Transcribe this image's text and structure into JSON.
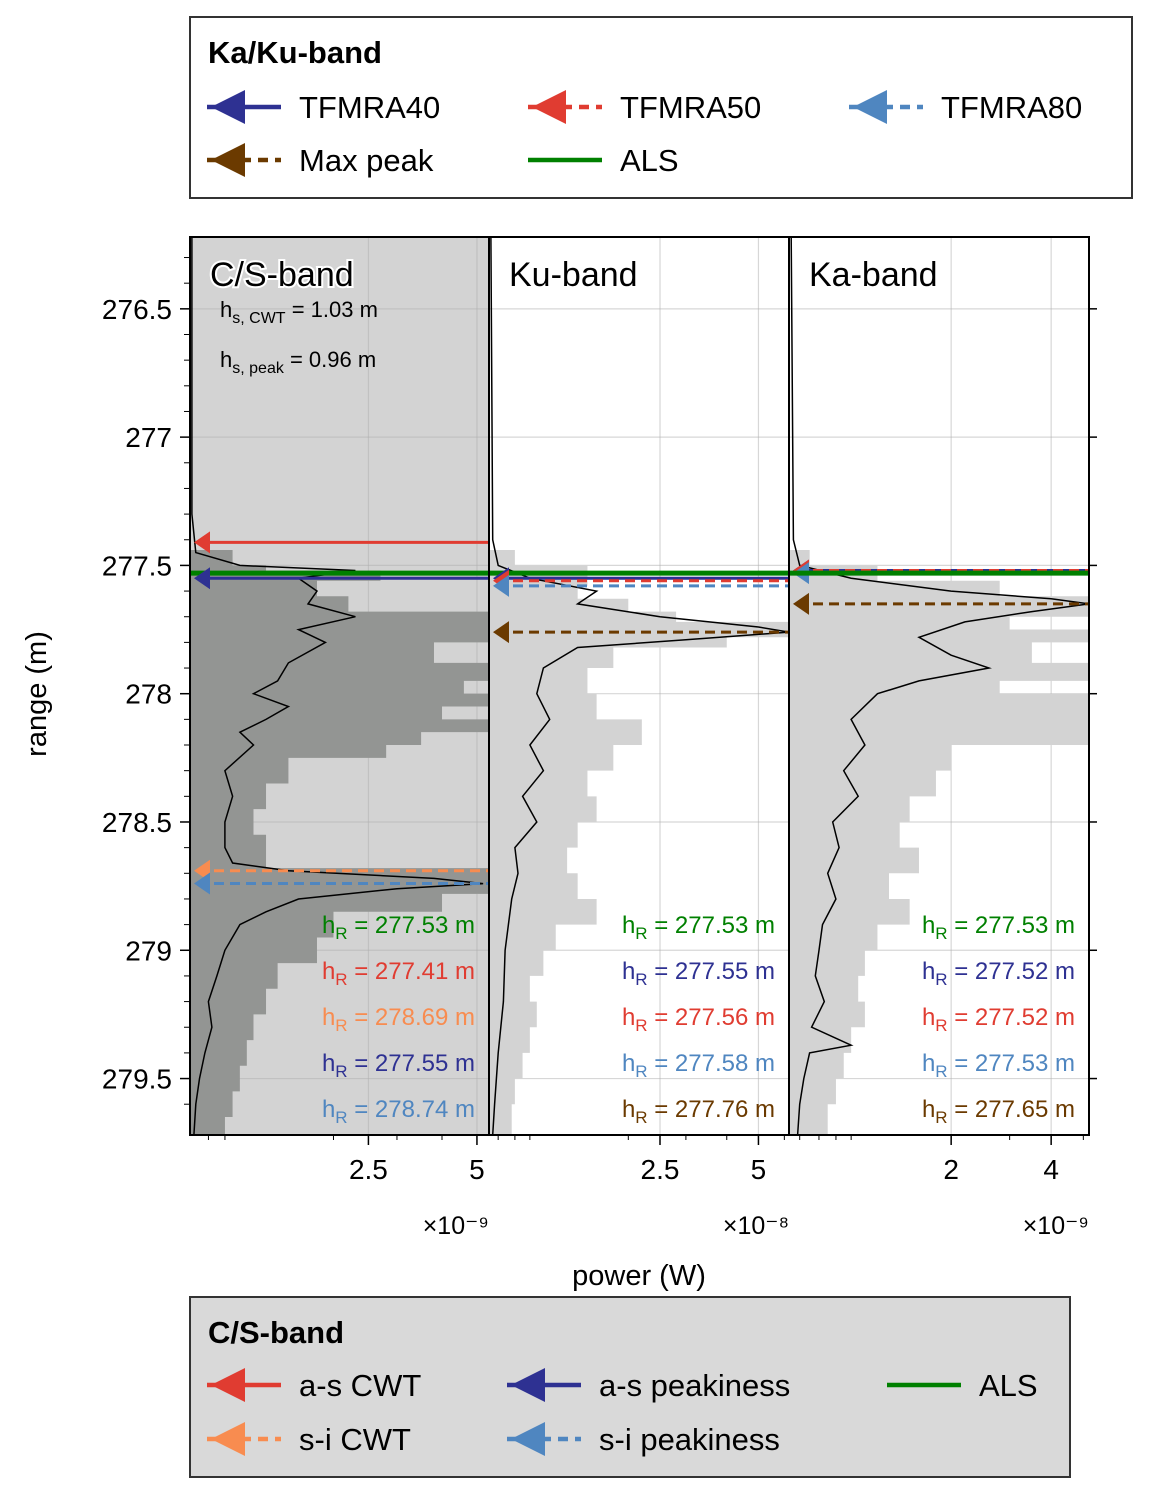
{
  "legend_top": {
    "title": "Ka/Ku-band",
    "items": [
      {
        "label": "TFMRA40",
        "color": "#2e3192",
        "style": "solid",
        "marker": true
      },
      {
        "label": "TFMRA50",
        "color": "#e03c31",
        "style": "dashed",
        "marker": true
      },
      {
        "label": "TFMRA80",
        "color": "#4f86c0",
        "style": "dashed",
        "marker": true
      },
      {
        "label": "Max peak",
        "color": "#6b3a00",
        "style": "dashed",
        "marker": true
      },
      {
        "label": "ALS",
        "color": "#008000",
        "style": "solid",
        "marker": false
      }
    ]
  },
  "legend_bottom": {
    "title": "C/S-band",
    "items": [
      {
        "label": "a-s CWT",
        "color": "#e03c31",
        "style": "solid",
        "marker": true
      },
      {
        "label": "a-s peakiness",
        "color": "#2e3192",
        "style": "solid",
        "marker": true
      },
      {
        "label": "ALS",
        "color": "#008000",
        "style": "solid",
        "marker": false
      },
      {
        "label": "s-i CWT",
        "color": "#f88c50",
        "style": "dashed",
        "marker": true
      },
      {
        "label": "s-i peakiness",
        "color": "#4f86c0",
        "style": "dashed",
        "marker": true
      }
    ]
  },
  "axes": {
    "ylabel": "range (m)",
    "xlabel": "power (W)"
  },
  "chart_data": {
    "type": "line",
    "y_axis": {
      "label": "range (m)",
      "range": [
        276.22,
        279.72
      ],
      "inverted": true,
      "ticks": [
        276.5,
        277,
        277.5,
        278,
        278.5,
        279,
        279.5
      ],
      "tick_labels": [
        "276.5",
        "277",
        "277.5",
        "278",
        "278.5",
        "279",
        "279.5"
      ]
    },
    "panels": [
      {
        "name": "C/S-band",
        "background": "#d3d3d3",
        "hist_color": "#939593",
        "x_scale": "log",
        "x_range": [
          8e-10,
          5.4e-09
        ],
        "x_ticks": [
          2.5e-09,
          5e-09
        ],
        "x_tick_labels": [
          "2.5",
          "5"
        ],
        "x_multiplier": "×10⁻⁹",
        "hs_labels": [
          {
            "main": "h",
            "sub": "s, CWT",
            "rest": " = 1.03 m"
          },
          {
            "main": "h",
            "sub": "s, peak",
            "rest": " = 0.96 m"
          }
        ],
        "retrackers": [
          {
            "name": "a-s CWT",
            "range": 277.41,
            "color": "#e03c31",
            "style": "solid"
          },
          {
            "name": "ALS",
            "range": 277.53,
            "color": "#008000",
            "style": "solid"
          },
          {
            "name": "a-s peakiness",
            "range": 277.55,
            "color": "#2e3192",
            "style": "solid"
          },
          {
            "name": "s-i CWT",
            "range": 278.69,
            "color": "#f88c50",
            "style": "dashed"
          },
          {
            "name": "s-i peakiness",
            "range": 278.74,
            "color": "#4f86c0",
            "style": "dashed"
          }
        ],
        "hr_labels": [
          {
            "prefix": "h",
            "sub": "R",
            "text": " = 277.53 m",
            "color": "#008000"
          },
          {
            "prefix": "h",
            "sub": "R",
            "text": " = 277.41 m",
            "color": "#e03c31"
          },
          {
            "prefix": "h",
            "sub": "R",
            "text": " = 278.69 m",
            "color": "#f88c50"
          },
          {
            "prefix": "h",
            "sub": "R",
            "text": " = 277.55 m",
            "color": "#2e3192"
          },
          {
            "prefix": "h",
            "sub": "R",
            "text": " = 278.74 m",
            "color": "#4f86c0"
          }
        ],
        "waveform": [
          [
            276.22,
            8.1e-10
          ],
          [
            277.3,
            8.1e-10
          ],
          [
            277.45,
            8.3e-10
          ],
          [
            277.5,
            1.1e-09
          ],
          [
            277.52,
            2.3e-09
          ],
          [
            277.55,
            1.6e-09
          ],
          [
            277.6,
            1.8e-09
          ],
          [
            277.65,
            1.7e-09
          ],
          [
            277.7,
            2.3e-09
          ],
          [
            277.75,
            1.6e-09
          ],
          [
            277.8,
            1.9e-09
          ],
          [
            277.88,
            1.5e-09
          ],
          [
            277.95,
            1.4e-09
          ],
          [
            278.0,
            1.2e-09
          ],
          [
            278.05,
            1.5e-09
          ],
          [
            278.1,
            1.3e-09
          ],
          [
            278.15,
            1.1e-09
          ],
          [
            278.2,
            1.2e-09
          ],
          [
            278.3,
            1e-09
          ],
          [
            278.4,
            1.05e-09
          ],
          [
            278.5,
            1e-09
          ],
          [
            278.6,
            1e-09
          ],
          [
            278.66,
            1.05e-09
          ],
          [
            278.69,
            1.5e-09
          ],
          [
            278.72,
            3.8e-09
          ],
          [
            278.74,
            5.2e-09
          ],
          [
            278.76,
            3e-09
          ],
          [
            278.8,
            1.6e-09
          ],
          [
            278.85,
            1.3e-09
          ],
          [
            278.9,
            1.1e-09
          ],
          [
            279.0,
            1e-09
          ],
          [
            279.1,
            9.5e-10
          ],
          [
            279.2,
            9e-10
          ],
          [
            279.3,
            9.2e-10
          ],
          [
            279.4,
            8.8e-10
          ],
          [
            279.5,
            8.5e-10
          ],
          [
            279.6,
            8.3e-10
          ],
          [
            279.72,
            8.2e-10
          ]
        ],
        "hist": [
          [
            277.44,
            1.05e-09
          ],
          [
            277.5,
            1.3e-09
          ],
          [
            277.52,
            2.7e-09
          ],
          [
            277.56,
            1.8e-09
          ],
          [
            277.62,
            2.2e-09
          ],
          [
            277.68,
            5.4e-09
          ],
          [
            277.75,
            5.4e-09
          ],
          [
            277.8,
            3.8e-09
          ],
          [
            277.88,
            5.4e-09
          ],
          [
            277.95,
            4.6e-09
          ],
          [
            278.0,
            5.4e-09
          ],
          [
            278.05,
            4e-09
          ],
          [
            278.1,
            5.4e-09
          ],
          [
            278.15,
            3.5e-09
          ],
          [
            278.2,
            2.8e-09
          ],
          [
            278.25,
            1.5e-09
          ],
          [
            278.35,
            1.3e-09
          ],
          [
            278.45,
            1.2e-09
          ],
          [
            278.55,
            1.3e-09
          ],
          [
            278.62,
            1.3e-09
          ],
          [
            278.68,
            5.4e-09
          ],
          [
            278.72,
            5.4e-09
          ],
          [
            278.78,
            4e-09
          ],
          [
            278.85,
            2e-09
          ],
          [
            278.95,
            1.8e-09
          ],
          [
            279.05,
            1.4e-09
          ],
          [
            279.15,
            1.3e-09
          ],
          [
            279.25,
            1.2e-09
          ],
          [
            279.35,
            1.15e-09
          ],
          [
            279.45,
            1.1e-09
          ],
          [
            279.55,
            1.05e-09
          ],
          [
            279.65,
            1e-09
          ],
          [
            279.72,
            1e-09
          ]
        ]
      },
      {
        "name": "Ku-band",
        "background": "#ffffff",
        "hist_color": "#d3d3d3",
        "x_scale": "log",
        "x_range": [
          7.5e-09,
          6.2e-08
        ],
        "x_ticks": [
          2.5e-08,
          5e-08
        ],
        "x_tick_labels": [
          "2.5",
          "5"
        ],
        "x_multiplier": "×10⁻⁸",
        "retrackers": [
          {
            "name": "ALS",
            "range": 277.53,
            "color": "#008000",
            "style": "solid"
          },
          {
            "name": "TFMRA40",
            "range": 277.55,
            "color": "#2e3192",
            "style": "solid"
          },
          {
            "name": "TFMRA50",
            "range": 277.56,
            "color": "#e03c31",
            "style": "dashed"
          },
          {
            "name": "TFMRA80",
            "range": 277.58,
            "color": "#4f86c0",
            "style": "dashed"
          },
          {
            "name": "Max peak",
            "range": 277.76,
            "color": "#6b3a00",
            "style": "dashed"
          }
        ],
        "hr_labels": [
          {
            "prefix": "h",
            "sub": "R",
            "text": " = 277.53 m",
            "color": "#008000"
          },
          {
            "prefix": "h",
            "sub": "R",
            "text": " = 277.55 m",
            "color": "#2e3192"
          },
          {
            "prefix": "h",
            "sub": "R",
            "text": " = 277.56 m",
            "color": "#e03c31"
          },
          {
            "prefix": "h",
            "sub": "R",
            "text": " = 277.58 m",
            "color": "#4f86c0"
          },
          {
            "prefix": "h",
            "sub": "R",
            "text": " = 277.76 m",
            "color": "#6b3a00"
          }
        ],
        "waveform": [
          [
            276.22,
            7.6e-09
          ],
          [
            277.4,
            7.7e-09
          ],
          [
            277.5,
            8e-09
          ],
          [
            277.55,
            1e-08
          ],
          [
            277.6,
            1.6e-08
          ],
          [
            277.65,
            1.4e-08
          ],
          [
            277.7,
            2.5e-08
          ],
          [
            277.74,
            5e-08
          ],
          [
            277.76,
            6.2e-08
          ],
          [
            277.79,
            3e-08
          ],
          [
            277.82,
            1.4e-08
          ],
          [
            277.9,
            1.1e-08
          ],
          [
            278.0,
            1.05e-08
          ],
          [
            278.1,
            1.15e-08
          ],
          [
            278.2,
            1e-08
          ],
          [
            278.3,
            1.1e-08
          ],
          [
            278.4,
            9.5e-09
          ],
          [
            278.5,
            1.05e-08
          ],
          [
            278.6,
            9e-09
          ],
          [
            278.7,
            9.2e-09
          ],
          [
            278.8,
            8.8e-09
          ],
          [
            278.9,
            8.6e-09
          ],
          [
            279.0,
            8.4e-09
          ],
          [
            279.2,
            8.3e-09
          ],
          [
            279.4,
            8e-09
          ],
          [
            279.6,
            7.8e-09
          ],
          [
            279.72,
            7.7e-09
          ]
        ],
        "hist": [
          [
            277.44,
            9e-09
          ],
          [
            277.5,
            1.5e-08
          ],
          [
            277.58,
            1.4e-08
          ],
          [
            277.63,
            2e-08
          ],
          [
            277.68,
            2.8e-08
          ],
          [
            277.72,
            6.2e-08
          ],
          [
            277.78,
            4e-08
          ],
          [
            277.82,
            1.8e-08
          ],
          [
            277.9,
            1.5e-08
          ],
          [
            278.0,
            1.6e-08
          ],
          [
            278.1,
            2.2e-08
          ],
          [
            278.2,
            1.8e-08
          ],
          [
            278.3,
            1.5e-08
          ],
          [
            278.4,
            1.6e-08
          ],
          [
            278.5,
            1.4e-08
          ],
          [
            278.6,
            1.3e-08
          ],
          [
            278.7,
            1.4e-08
          ],
          [
            278.8,
            1.6e-08
          ],
          [
            278.9,
            1.2e-08
          ],
          [
            279.0,
            1.1e-08
          ],
          [
            279.1,
            1e-08
          ],
          [
            279.2,
            1.05e-08
          ],
          [
            279.3,
            1e-08
          ],
          [
            279.4,
            9.5e-09
          ],
          [
            279.5,
            9e-09
          ],
          [
            279.6,
            8.8e-09
          ],
          [
            279.72,
            8.5e-09
          ]
        ]
      },
      {
        "name": "Ka-band",
        "background": "#ffffff",
        "hist_color": "#d3d3d3",
        "x_scale": "log",
        "x_range": [
          6.5e-10,
          5.2e-09
        ],
        "x_ticks": [
          2e-09,
          4e-09
        ],
        "x_tick_labels": [
          "2",
          "4"
        ],
        "x_multiplier": "×10⁻⁹",
        "retrackers": [
          {
            "name": "TFMRA40",
            "range": 277.52,
            "color": "#2e3192",
            "style": "solid"
          },
          {
            "name": "TFMRA50",
            "range": 277.52,
            "color": "#e03c31",
            "style": "dashed"
          },
          {
            "name": "TFMRA80",
            "range": 277.53,
            "color": "#4f86c0",
            "style": "dashed"
          },
          {
            "name": "ALS",
            "range": 277.53,
            "color": "#008000",
            "style": "solid"
          },
          {
            "name": "Max peak",
            "range": 277.65,
            "color": "#6b3a00",
            "style": "dashed"
          }
        ],
        "hr_labels": [
          {
            "prefix": "h",
            "sub": "R",
            "text": " = 277.53 m",
            "color": "#008000"
          },
          {
            "prefix": "h",
            "sub": "R",
            "text": " = 277.52 m",
            "color": "#2e3192"
          },
          {
            "prefix": "h",
            "sub": "R",
            "text": " = 277.52 m",
            "color": "#e03c31"
          },
          {
            "prefix": "h",
            "sub": "R",
            "text": " = 277.53 m",
            "color": "#4f86c0"
          },
          {
            "prefix": "h",
            "sub": "R",
            "text": " = 277.65 m",
            "color": "#6b3a00"
          }
        ],
        "waveform": [
          [
            276.22,
            6.6e-10
          ],
          [
            277.4,
            6.7e-10
          ],
          [
            277.5,
            7e-10
          ],
          [
            277.55,
            1e-09
          ],
          [
            277.6,
            2e-09
          ],
          [
            277.63,
            4e-09
          ],
          [
            277.65,
            5.2e-09
          ],
          [
            277.68,
            3.5e-09
          ],
          [
            277.72,
            2.2e-09
          ],
          [
            277.78,
            1.6e-09
          ],
          [
            277.85,
            2e-09
          ],
          [
            277.9,
            2.6e-09
          ],
          [
            277.95,
            1.6e-09
          ],
          [
            278.0,
            1.2e-09
          ],
          [
            278.1,
            1e-09
          ],
          [
            278.2,
            1.1e-09
          ],
          [
            278.3,
            9.5e-10
          ],
          [
            278.4,
            1.05e-09
          ],
          [
            278.5,
            8.8e-10
          ],
          [
            278.6,
            9.2e-10
          ],
          [
            278.7,
            8.5e-10
          ],
          [
            278.8,
            9e-10
          ],
          [
            278.9,
            8.2e-10
          ],
          [
            279.0,
            8e-10
          ],
          [
            279.1,
            7.8e-10
          ],
          [
            279.2,
            8.3e-10
          ],
          [
            279.3,
            7.6e-10
          ],
          [
            279.37,
            1e-09
          ],
          [
            279.4,
            7.5e-10
          ],
          [
            279.5,
            7.2e-10
          ],
          [
            279.6,
            7e-10
          ],
          [
            279.72,
            6.9e-10
          ]
        ],
        "hist": [
          [
            277.44,
            7.5e-10
          ],
          [
            277.5,
            1.2e-09
          ],
          [
            277.56,
            2.8e-09
          ],
          [
            277.62,
            5.2e-09
          ],
          [
            277.7,
            3e-09
          ],
          [
            277.75,
            5.2e-09
          ],
          [
            277.8,
            3.5e-09
          ],
          [
            277.88,
            5.2e-09
          ],
          [
            277.95,
            2.8e-09
          ],
          [
            278.0,
            5.2e-09
          ],
          [
            278.1,
            5.2e-09
          ],
          [
            278.2,
            2e-09
          ],
          [
            278.3,
            1.8e-09
          ],
          [
            278.4,
            1.5e-09
          ],
          [
            278.5,
            1.4e-09
          ],
          [
            278.6,
            1.6e-09
          ],
          [
            278.7,
            1.3e-09
          ],
          [
            278.8,
            1.5e-09
          ],
          [
            278.9,
            1.2e-09
          ],
          [
            279.0,
            1.1e-09
          ],
          [
            279.1,
            1.05e-09
          ],
          [
            279.2,
            1.1e-09
          ],
          [
            279.3,
            1e-09
          ],
          [
            279.4,
            9.5e-10
          ],
          [
            279.5,
            9e-10
          ],
          [
            279.6,
            8.5e-10
          ],
          [
            279.72,
            8e-10
          ]
        ]
      }
    ]
  }
}
